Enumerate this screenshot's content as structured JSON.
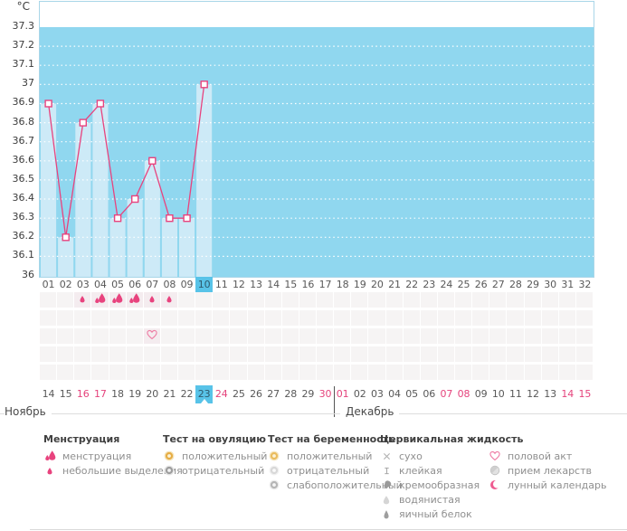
{
  "chart_data": {
    "type": "line",
    "unit": "°C",
    "ylim": [
      36,
      37.3
    ],
    "yticks": [
      "37.3",
      "37.2",
      "37.1",
      "37",
      "36.9",
      "36.8",
      "36.7",
      "36.6",
      "36.5",
      "36.4",
      "36.3",
      "36.2",
      "36.1",
      "36"
    ],
    "total_days": 32,
    "points": [
      {
        "day": 1,
        "t": 36.9
      },
      {
        "day": 2,
        "t": 36.2
      },
      {
        "day": 3,
        "t": 36.8
      },
      {
        "day": 4,
        "t": 36.9
      },
      {
        "day": 5,
        "t": 36.3
      },
      {
        "day": 6,
        "t": 36.4
      },
      {
        "day": 7,
        "t": 36.6
      },
      {
        "day": 8,
        "t": 36.3
      },
      {
        "day": 9,
        "t": 36.3
      },
      {
        "day": 10,
        "t": 37.0
      }
    ],
    "highlighted_cycle_day": "10",
    "colors": {
      "plot_bg": "#90d7ef",
      "bar": "#cdeaf7",
      "line": "#e8437e",
      "marker_fill": "#ffffff",
      "highlight": "#58c3e8",
      "weekend_red": "#e5437c"
    }
  },
  "cycle_days": [
    "01",
    "02",
    "03",
    "04",
    "05",
    "06",
    "07",
    "08",
    "09",
    "10",
    "11",
    "12",
    "13",
    "14",
    "15",
    "16",
    "17",
    "18",
    "19",
    "20",
    "21",
    "22",
    "23",
    "24",
    "25",
    "26",
    "27",
    "28",
    "29",
    "30",
    "31",
    "32"
  ],
  "marks": {
    "rows": 5,
    "menstruation_row": 1,
    "intercourse_row": 3,
    "menstruation": [
      {
        "day": 3,
        "type": "spotting"
      },
      {
        "day": 4,
        "type": "menstruation"
      },
      {
        "day": 5,
        "type": "menstruation"
      },
      {
        "day": 6,
        "type": "menstruation"
      },
      {
        "day": 7,
        "type": "spotting"
      },
      {
        "day": 8,
        "type": "spotting"
      }
    ],
    "intercourse": [
      {
        "day": 7,
        "type": "intercourse"
      }
    ]
  },
  "calendar": {
    "dates": [
      {
        "label": "14"
      },
      {
        "label": "15"
      },
      {
        "label": "16",
        "weekend": true
      },
      {
        "label": "17",
        "weekend": true
      },
      {
        "label": "18"
      },
      {
        "label": "19"
      },
      {
        "label": "20"
      },
      {
        "label": "21"
      },
      {
        "label": "22"
      },
      {
        "label": "23",
        "highlighted": true
      },
      {
        "label": "24",
        "weekend": true
      },
      {
        "label": "25"
      },
      {
        "label": "26"
      },
      {
        "label": "27"
      },
      {
        "label": "28"
      },
      {
        "label": "29"
      },
      {
        "label": "30",
        "weekend": true
      },
      {
        "label": "01",
        "weekend": true,
        "month_start": true
      },
      {
        "label": "02"
      },
      {
        "label": "03"
      },
      {
        "label": "04"
      },
      {
        "label": "05"
      },
      {
        "label": "06"
      },
      {
        "label": "07",
        "weekend": true
      },
      {
        "label": "08",
        "weekend": true
      },
      {
        "label": "09"
      },
      {
        "label": "10"
      },
      {
        "label": "11"
      },
      {
        "label": "12"
      },
      {
        "label": "13"
      },
      {
        "label": "14",
        "weekend": true
      },
      {
        "label": "15",
        "weekend": true
      }
    ],
    "months": [
      {
        "label": "Ноябрь"
      },
      {
        "label": "Декабрь"
      }
    ]
  },
  "legend": {
    "columns": [
      {
        "title": "Менструация",
        "items": [
          {
            "icon": "menstruation-icon",
            "label": "менструация"
          },
          {
            "icon": "spotting-icon",
            "label": "небольшие выделения"
          }
        ]
      },
      {
        "title": "Тест на овуляцию",
        "items": [
          {
            "icon": "ovulation-positive-icon",
            "label": "положительный"
          },
          {
            "icon": "ovulation-negative-icon",
            "label": "отрицательный"
          }
        ]
      },
      {
        "title": "Тест на беременность",
        "items": [
          {
            "icon": "pregnancy-positive-icon",
            "label": "положительный"
          },
          {
            "icon": "pregnancy-negative-icon",
            "label": "отрицательный"
          },
          {
            "icon": "pregnancy-weak-icon",
            "label": "слабоположительный"
          }
        ]
      },
      {
        "title": "Цервикальная жидкость",
        "items": [
          {
            "icon": "dry-icon",
            "label": "сухо"
          },
          {
            "icon": "sticky-icon",
            "label": "клейкая"
          },
          {
            "icon": "creamy-icon",
            "label": "кремообразная"
          },
          {
            "icon": "watery-icon",
            "label": "водянистая"
          },
          {
            "icon": "eggwhite-icon",
            "label": "яичный белок"
          }
        ]
      },
      {
        "title": "",
        "items": [
          {
            "icon": "intercourse-icon",
            "label": "половой акт"
          },
          {
            "icon": "medication-icon",
            "label": "прием лекарств"
          },
          {
            "icon": "moon-icon",
            "label": "лунный календарь"
          }
        ]
      }
    ]
  }
}
